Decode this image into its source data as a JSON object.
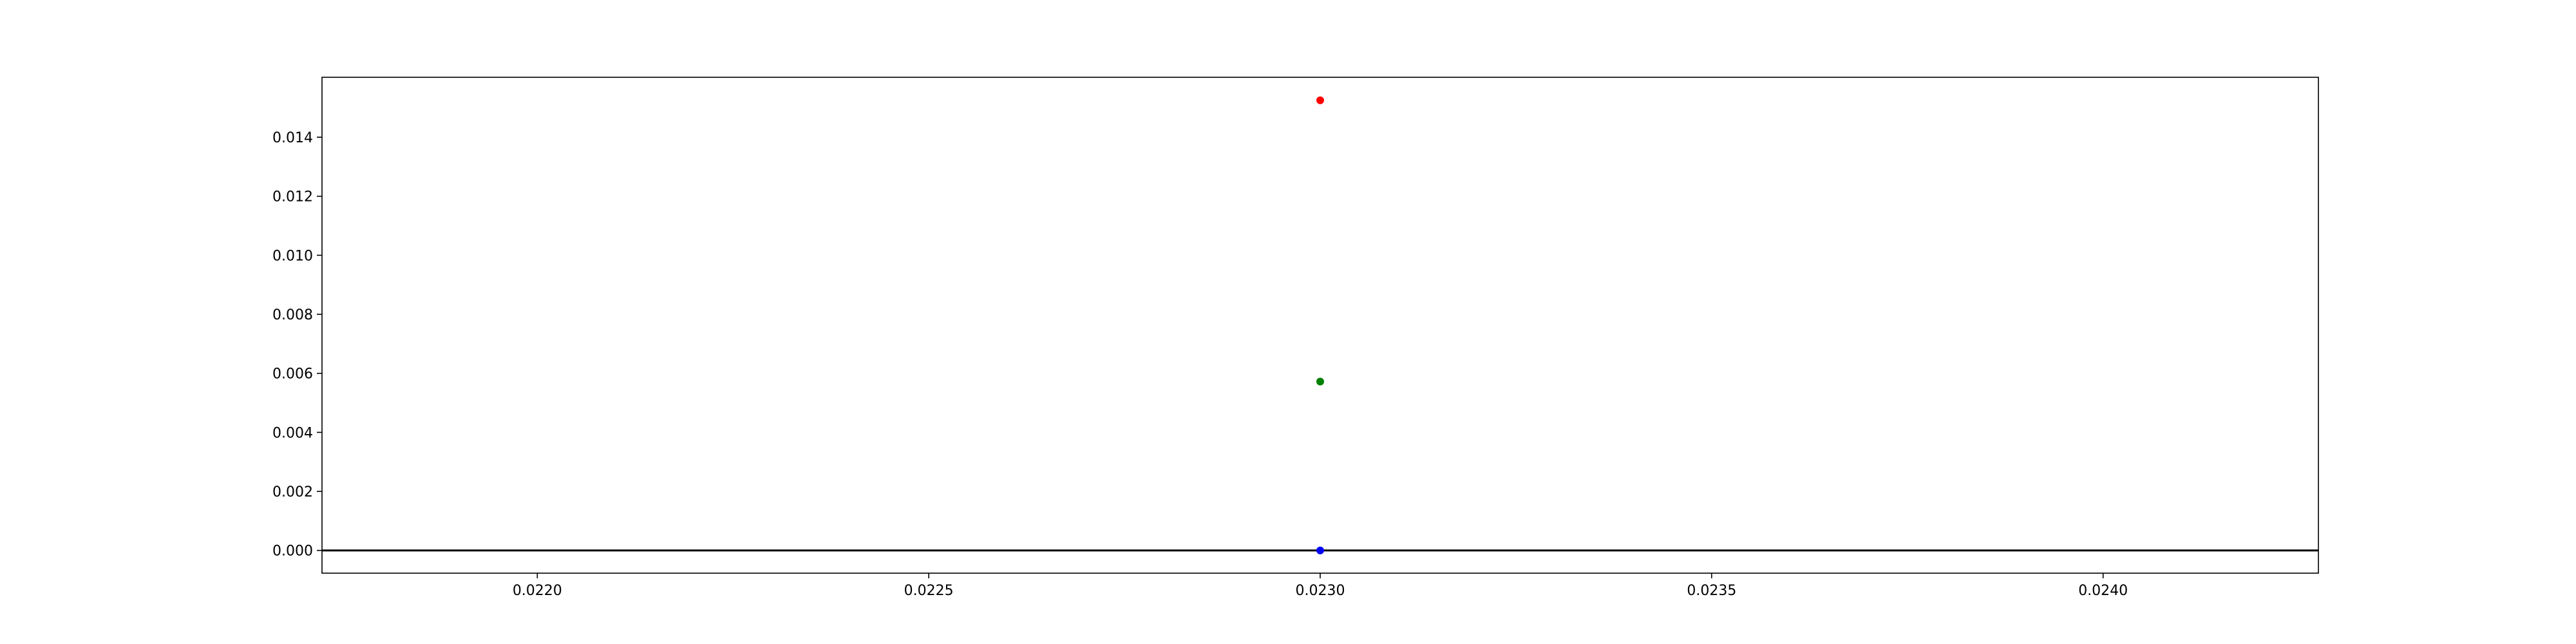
{
  "chart_data": {
    "type": "scatter",
    "title": "",
    "xlabel": "",
    "ylabel": "",
    "xlim": [
      0.021725,
      0.024275
    ],
    "ylim": [
      -0.00077,
      0.01603
    ],
    "x_ticks": [
      0.022,
      0.0225,
      0.023,
      0.0235,
      0.024
    ],
    "x_tick_labels": [
      "0.0220",
      "0.0225",
      "0.0230",
      "0.0235",
      "0.0240"
    ],
    "y_ticks": [
      0.0,
      0.002,
      0.004,
      0.006,
      0.008,
      0.01,
      0.012,
      0.014
    ],
    "y_tick_labels": [
      "0.000",
      "0.002",
      "0.004",
      "0.006",
      "0.008",
      "0.010",
      "0.012",
      "0.014"
    ],
    "grid": false,
    "legend": "none",
    "hline": {
      "y": 0.0,
      "color": "#000000"
    },
    "points": [
      {
        "x": 0.023,
        "y": 0.01525,
        "color": "#ff0000"
      },
      {
        "x": 0.023,
        "y": 0.00572,
        "color": "#008000"
      },
      {
        "x": 0.023,
        "y": 0.0,
        "color": "#0000ff"
      }
    ]
  }
}
